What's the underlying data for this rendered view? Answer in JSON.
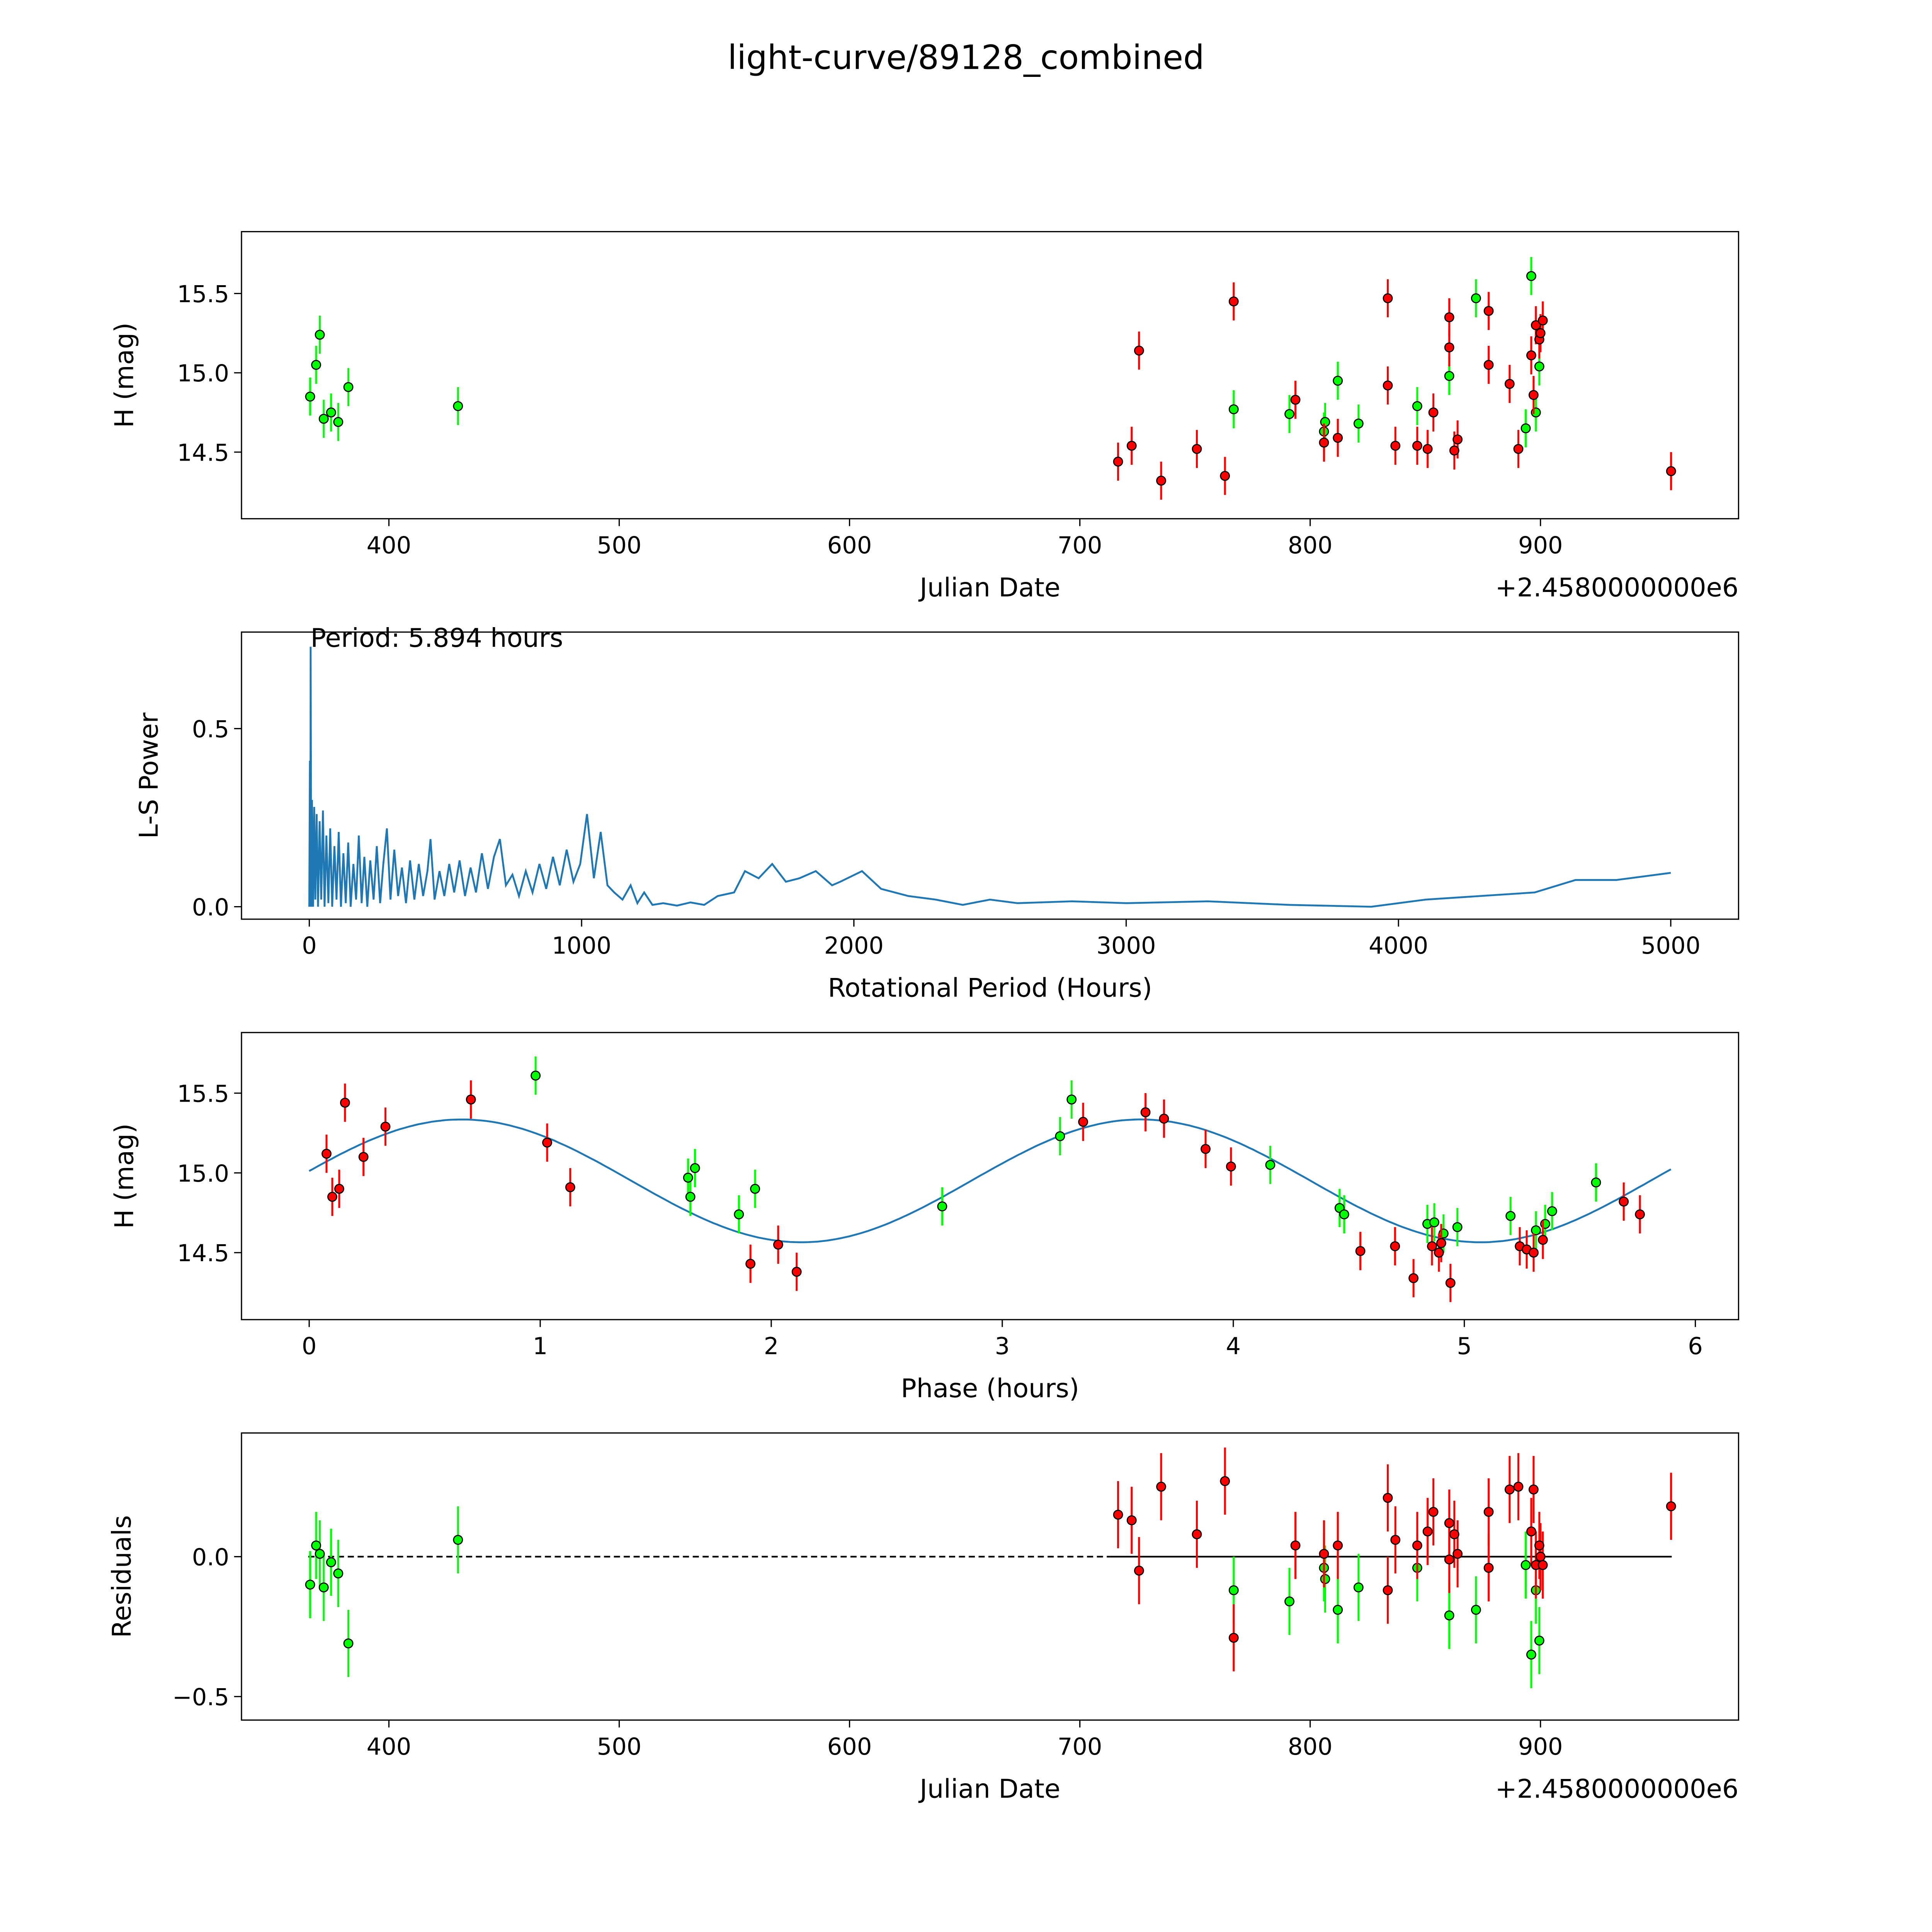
{
  "title": "light-curve/89128_combined",
  "colors": {
    "green": "#00ff00",
    "red": "#ff0000",
    "line": "#1f77b4",
    "edge": "#000000"
  },
  "chart_data": [
    {
      "id": "lightcurve",
      "type": "scatter",
      "xlabel": "Julian Date",
      "ylabel": "H (mag)",
      "offset_text": "+2.4580000000e6",
      "xlim": [
        336,
        986
      ],
      "ylim": [
        14.08,
        15.89
      ],
      "xticks": [
        400,
        500,
        600,
        700,
        800,
        900
      ],
      "yticks": [
        14.5,
        15.0,
        15.5
      ],
      "ytick_labels": [
        "14.5",
        "15.0",
        "15.5"
      ],
      "err": 0.12,
      "green": [
        [
          365.8,
          14.85
        ],
        [
          368.4,
          15.05
        ],
        [
          370,
          15.24
        ],
        [
          371.7,
          14.71
        ],
        [
          374.9,
          14.75
        ],
        [
          378,
          14.69
        ],
        [
          382.4,
          14.91
        ],
        [
          430,
          14.79
        ],
        [
          766.8,
          14.77
        ],
        [
          791,
          14.74
        ],
        [
          806,
          14.63
        ],
        [
          806.5,
          14.69
        ],
        [
          812,
          14.95
        ],
        [
          821,
          14.68
        ],
        [
          846.5,
          14.79
        ],
        [
          860.4,
          14.98
        ],
        [
          872,
          15.47
        ],
        [
          893.6,
          14.65
        ],
        [
          896,
          15.61
        ],
        [
          898,
          14.75
        ],
        [
          899.5,
          15.04
        ]
      ],
      "red": [
        [
          716.6,
          14.44
        ],
        [
          722.5,
          14.54
        ],
        [
          725.7,
          15.14
        ],
        [
          735.3,
          14.32
        ],
        [
          750.8,
          14.52
        ],
        [
          763,
          14.35
        ],
        [
          766.8,
          15.45
        ],
        [
          793.6,
          14.83
        ],
        [
          806,
          14.56
        ],
        [
          812,
          14.59
        ],
        [
          833.7,
          14.92
        ],
        [
          833.7,
          15.47
        ],
        [
          837,
          14.54
        ],
        [
          846.5,
          14.54
        ],
        [
          851,
          14.52
        ],
        [
          853.5,
          14.75
        ],
        [
          860.4,
          15.16
        ],
        [
          860.4,
          15.35
        ],
        [
          862.6,
          14.51
        ],
        [
          864,
          14.58
        ],
        [
          877.5,
          15.05
        ],
        [
          877.5,
          15.39
        ],
        [
          886.6,
          14.93
        ],
        [
          890.4,
          14.52
        ],
        [
          896,
          15.11
        ],
        [
          897,
          14.86
        ],
        [
          898,
          15.3
        ],
        [
          899.5,
          15.21
        ],
        [
          900,
          15.25
        ],
        [
          901,
          15.33
        ],
        [
          956.7,
          14.38
        ]
      ]
    },
    {
      "id": "periodogram",
      "type": "line",
      "xlabel": "Rotational Period (Hours)",
      "ylabel": "L-S Power",
      "annotation": "Period: 5.894 hours",
      "xlim": [
        -249,
        5249
      ],
      "ylim": [
        -0.035,
        0.771
      ],
      "xticks": [
        0,
        1000,
        2000,
        3000,
        4000,
        5000
      ],
      "yticks": [
        0.0,
        0.5
      ],
      "ytick_labels": [
        "0.0",
        "0.5"
      ],
      "points": [
        [
          0,
          0
        ],
        [
          2,
          0.41
        ],
        [
          4,
          0
        ],
        [
          5,
          0.73
        ],
        [
          7,
          0
        ],
        [
          10,
          0.3
        ],
        [
          14,
          0
        ],
        [
          18,
          0.28
        ],
        [
          22,
          0.02
        ],
        [
          27,
          0.26
        ],
        [
          32,
          0
        ],
        [
          38,
          0.24
        ],
        [
          44,
          0.02
        ],
        [
          50,
          0.27
        ],
        [
          56,
          0
        ],
        [
          63,
          0.2
        ],
        [
          70,
          0.01
        ],
        [
          77,
          0.22
        ],
        [
          84,
          0
        ],
        [
          92,
          0.17
        ],
        [
          100,
          0.02
        ],
        [
          108,
          0.21
        ],
        [
          116,
          0
        ],
        [
          125,
          0.15
        ],
        [
          134,
          0.01
        ],
        [
          143,
          0.18
        ],
        [
          152,
          0
        ],
        [
          162,
          0.12
        ],
        [
          172,
          0.02
        ],
        [
          182,
          0.2
        ],
        [
          192,
          0.01
        ],
        [
          202,
          0.14
        ],
        [
          213,
          0
        ],
        [
          224,
          0.13
        ],
        [
          236,
          0.02
        ],
        [
          248,
          0.17
        ],
        [
          260,
          0.01
        ],
        [
          272,
          0.12
        ],
        [
          285,
          0.22
        ],
        [
          298,
          0.02
        ],
        [
          312,
          0.16
        ],
        [
          326,
          0.03
        ],
        [
          340,
          0.11
        ],
        [
          355,
          0.01
        ],
        [
          370,
          0.13
        ],
        [
          386,
          0.02
        ],
        [
          402,
          0.12
        ],
        [
          418,
          0.03
        ],
        [
          434,
          0.1
        ],
        [
          445,
          0.19
        ],
        [
          460,
          0.02
        ],
        [
          478,
          0.1
        ],
        [
          496,
          0.03
        ],
        [
          514,
          0.12
        ],
        [
          532,
          0.04
        ],
        [
          552,
          0.13
        ],
        [
          572,
          0.03
        ],
        [
          592,
          0.11
        ],
        [
          612,
          0.04
        ],
        [
          634,
          0.15
        ],
        [
          656,
          0.05
        ],
        [
          678,
          0.14
        ],
        [
          700,
          0.19
        ],
        [
          722,
          0.06
        ],
        [
          746,
          0.09
        ],
        [
          770,
          0.03
        ],
        [
          795,
          0.1
        ],
        [
          820,
          0.04
        ],
        [
          845,
          0.12
        ],
        [
          870,
          0.05
        ],
        [
          895,
          0.14
        ],
        [
          920,
          0.06
        ],
        [
          945,
          0.16
        ],
        [
          970,
          0.07
        ],
        [
          995,
          0.12
        ],
        [
          1020,
          0.26
        ],
        [
          1045,
          0.08
        ],
        [
          1070,
          0.21
        ],
        [
          1095,
          0.06
        ],
        [
          1120,
          0.04
        ],
        [
          1150,
          0.02
        ],
        [
          1180,
          0.06
        ],
        [
          1205,
          0.01
        ],
        [
          1230,
          0.04
        ],
        [
          1260,
          0.005
        ],
        [
          1300,
          0.01
        ],
        [
          1350,
          0.003
        ],
        [
          1400,
          0.012
        ],
        [
          1450,
          0.005
        ],
        [
          1500,
          0.03
        ],
        [
          1560,
          0.04
        ],
        [
          1600,
          0.1
        ],
        [
          1650,
          0.08
        ],
        [
          1700,
          0.12
        ],
        [
          1750,
          0.07
        ],
        [
          1800,
          0.08
        ],
        [
          1860,
          0.1
        ],
        [
          1920,
          0.06
        ],
        [
          1950,
          0.07
        ],
        [
          2030,
          0.1
        ],
        [
          2100,
          0.05
        ],
        [
          2200,
          0.03
        ],
        [
          2300,
          0.02
        ],
        [
          2400,
          0.005
        ],
        [
          2500,
          0.02
        ],
        [
          2600,
          0.01
        ],
        [
          2800,
          0.015
        ],
        [
          3000,
          0.01
        ],
        [
          3300,
          0.015
        ],
        [
          3600,
          0.005
        ],
        [
          3900,
          0.0
        ],
        [
          4100,
          0.02
        ],
        [
          4300,
          0.03
        ],
        [
          4500,
          0.04
        ],
        [
          4650,
          0.075
        ],
        [
          4800,
          0.075
        ],
        [
          5000,
          0.095
        ]
      ]
    },
    {
      "id": "phased",
      "type": "scatter",
      "xlabel": "Phase (hours)",
      "ylabel": "H (mag)",
      "xlim": [
        -0.293,
        6.187
      ],
      "ylim": [
        14.08,
        15.88
      ],
      "xticks": [
        0,
        1,
        2,
        3,
        4,
        5,
        6
      ],
      "yticks": [
        14.5,
        15.0,
        15.5
      ],
      "ytick_labels": [
        "14.5",
        "15.0",
        "15.5"
      ],
      "err": 0.12,
      "fit": {
        "mean": 14.95,
        "amplitude": 0.385,
        "period": 2.94,
        "peak_phase": 0.66,
        "x_range": [
          0,
          5.894
        ]
      },
      "green": [
        [
          0.98,
          15.61
        ],
        [
          1.64,
          14.97
        ],
        [
          1.65,
          14.85
        ],
        [
          1.67,
          15.03
        ],
        [
          1.86,
          14.74
        ],
        [
          1.93,
          14.9
        ],
        [
          2.74,
          14.79
        ],
        [
          3.25,
          15.23
        ],
        [
          3.3,
          15.46
        ],
        [
          4.16,
          15.05
        ],
        [
          4.46,
          14.78
        ],
        [
          4.48,
          14.74
        ],
        [
          4.84,
          14.68
        ],
        [
          4.87,
          14.69
        ],
        [
          4.91,
          14.62
        ],
        [
          4.97,
          14.66
        ],
        [
          5.2,
          14.73
        ],
        [
          5.31,
          14.64
        ],
        [
          5.35,
          14.68
        ],
        [
          5.38,
          14.76
        ],
        [
          5.57,
          14.94
        ]
      ],
      "red": [
        [
          0.075,
          15.12
        ],
        [
          0.1,
          14.85
        ],
        [
          0.13,
          14.9
        ],
        [
          0.155,
          15.44
        ],
        [
          0.235,
          15.1
        ],
        [
          0.33,
          15.29
        ],
        [
          0.7,
          15.46
        ],
        [
          1.03,
          15.19
        ],
        [
          1.13,
          14.91
        ],
        [
          1.91,
          14.43
        ],
        [
          2.03,
          14.55
        ],
        [
          2.11,
          14.38
        ],
        [
          3.35,
          15.32
        ],
        [
          3.62,
          15.38
        ],
        [
          3.7,
          15.34
        ],
        [
          3.88,
          15.15
        ],
        [
          3.99,
          15.04
        ],
        [
          4.55,
          14.51
        ],
        [
          4.7,
          14.54
        ],
        [
          4.78,
          14.34
        ],
        [
          4.86,
          14.54
        ],
        [
          4.89,
          14.5
        ],
        [
          4.9,
          14.56
        ],
        [
          4.94,
          14.31
        ],
        [
          5.24,
          14.54
        ],
        [
          5.27,
          14.52
        ],
        [
          5.3,
          14.5
        ],
        [
          5.34,
          14.58
        ],
        [
          5.69,
          14.82
        ],
        [
          5.76,
          14.74
        ]
      ]
    },
    {
      "id": "residuals",
      "type": "scatter",
      "xlabel": "Julian Date",
      "ylabel": "Residuals",
      "offset_text": "+2.4580000000e6",
      "xlim": [
        336,
        986
      ],
      "ylim": [
        -0.584,
        0.442
      ],
      "xticks": [
        400,
        500,
        600,
        700,
        800,
        900
      ],
      "yticks": [
        -0.5,
        0.0
      ],
      "ytick_labels": [
        "−0.5",
        "0.0"
      ],
      "err": 0.12,
      "zero_dashed": [
        365,
        713
      ],
      "zero_solid": [
        713,
        957
      ],
      "green": [
        [
          365.8,
          -0.1
        ],
        [
          368.4,
          0.04
        ],
        [
          370,
          0.01
        ],
        [
          371.7,
          -0.11
        ],
        [
          374.9,
          -0.02
        ],
        [
          378,
          -0.06
        ],
        [
          382.4,
          -0.31
        ],
        [
          430,
          0.06
        ],
        [
          766.8,
          -0.12
        ],
        [
          791,
          -0.16
        ],
        [
          806,
          -0.04
        ],
        [
          806.5,
          -0.08
        ],
        [
          812,
          -0.19
        ],
        [
          821,
          -0.11
        ],
        [
          846.5,
          -0.04
        ],
        [
          860.4,
          -0.21
        ],
        [
          872,
          -0.19
        ],
        [
          893.6,
          -0.03
        ],
        [
          896,
          -0.35
        ],
        [
          898,
          -0.12
        ],
        [
          899.5,
          -0.3
        ]
      ],
      "red": [
        [
          716.6,
          0.15
        ],
        [
          722.5,
          0.13
        ],
        [
          725.7,
          -0.05
        ],
        [
          735.3,
          0.25
        ],
        [
          750.8,
          0.08
        ],
        [
          763,
          0.27
        ],
        [
          766.8,
          -0.29
        ],
        [
          793.6,
          0.04
        ],
        [
          806,
          0.01
        ],
        [
          812,
          0.04
        ],
        [
          833.7,
          0.21
        ],
        [
          833.7,
          -0.12
        ],
        [
          837,
          0.06
        ],
        [
          846.5,
          0.04
        ],
        [
          851,
          0.09
        ],
        [
          853.5,
          0.16
        ],
        [
          860.4,
          0.12
        ],
        [
          860.4,
          -0.01
        ],
        [
          862.6,
          0.08
        ],
        [
          864,
          0.01
        ],
        [
          877.5,
          0.16
        ],
        [
          877.5,
          -0.04
        ],
        [
          886.6,
          0.24
        ],
        [
          890.4,
          0.25
        ],
        [
          896,
          0.09
        ],
        [
          897,
          0.24
        ],
        [
          898,
          -0.03
        ],
        [
          899.5,
          0.04
        ],
        [
          900,
          0.0
        ],
        [
          901,
          -0.03
        ],
        [
          956.7,
          0.18
        ]
      ]
    }
  ]
}
